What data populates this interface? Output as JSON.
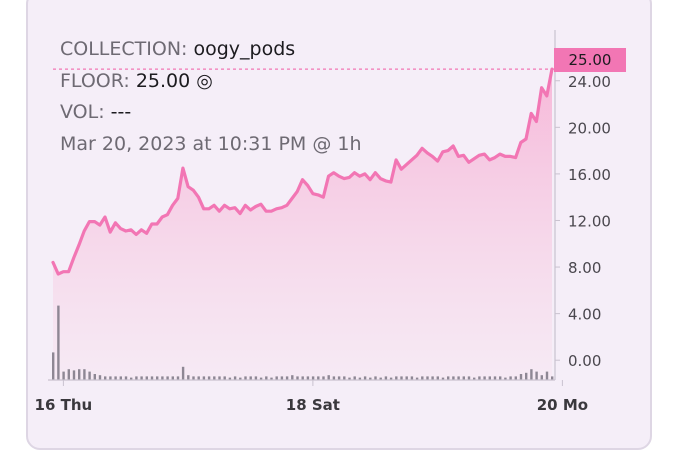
{
  "info": {
    "collection_label": "COLLECTION:",
    "collection_value": "oogy_pods",
    "floor_label": "FLOOR:",
    "floor_value": "25.00",
    "floor_icon": "circle-target-icon",
    "vol_label": "VOL:",
    "vol_value": "---",
    "timestamp": "Mar 20, 2023 at 10:31 PM @ 1h"
  },
  "current_price_label": "25.00",
  "colors": {
    "line": "#f276b4",
    "area_top": "#f7c3df",
    "volume": "#8e8794",
    "axis": "#c9c2cf"
  },
  "chart_data": {
    "type": "area",
    "title": "",
    "xlabel": "",
    "ylabel": "",
    "ylim": [
      -1.7,
      27.5
    ],
    "grid": false,
    "y_ticks": [
      "0.00",
      "4.00",
      "8.00",
      "12.00",
      "16.00",
      "20.00",
      "24.00"
    ],
    "y_tick_values": [
      0,
      4,
      8,
      12,
      16,
      20,
      24
    ],
    "x_ticks": [
      {
        "label": "16 Thu",
        "at": 2
      },
      {
        "label": "18 Sat",
        "at": 50
      },
      {
        "label": "20 Mo",
        "at": 98
      }
    ],
    "current_value": 25.0,
    "series": [
      {
        "values": [
          8.4,
          7.4,
          7.6,
          7.6,
          8.8,
          9.9,
          11.1,
          11.9,
          11.9,
          11.6,
          12.3,
          11.0,
          11.8,
          11.3,
          11.1,
          11.2,
          10.8,
          11.2,
          10.9,
          11.7,
          11.7,
          12.3,
          12.5,
          13.3,
          13.9,
          16.5,
          14.9,
          14.6,
          14.0,
          13.0,
          13.0,
          13.3,
          12.8,
          13.3,
          13.0,
          13.1,
          12.6,
          13.3,
          12.9,
          13.2,
          13.4,
          12.8,
          12.8,
          13.0,
          13.1,
          13.3,
          13.9,
          14.5,
          15.5,
          15.0,
          14.3,
          14.2,
          14.0,
          15.8,
          16.1,
          15.8,
          15.6,
          15.7,
          16.1,
          15.8,
          16.0,
          15.5,
          16.1,
          15.6,
          15.4,
          15.3,
          17.2,
          16.4,
          16.8,
          17.2,
          17.6,
          18.2,
          17.8,
          17.5,
          17.1,
          17.9,
          18.0,
          18.4,
          17.5,
          17.6,
          17.0,
          17.3,
          17.6,
          17.7,
          17.2,
          17.4,
          17.7,
          17.5,
          17.5,
          17.4,
          18.7,
          19.0,
          21.2,
          20.5,
          23.4,
          22.7,
          25.0
        ]
      },
      {
        "name": "volume",
        "values": [
          2.3,
          6.2,
          0.7,
          0.9,
          0.8,
          0.9,
          0.9,
          0.7,
          0.5,
          0.4,
          0.3,
          0.3,
          0.3,
          0.3,
          0.3,
          0.2,
          0.3,
          0.3,
          0.3,
          0.3,
          0.3,
          0.3,
          0.3,
          0.3,
          0.3,
          1.1,
          0.4,
          0.3,
          0.3,
          0.3,
          0.3,
          0.3,
          0.3,
          0.3,
          0.2,
          0.3,
          0.2,
          0.3,
          0.3,
          0.3,
          0.2,
          0.3,
          0.2,
          0.3,
          0.3,
          0.3,
          0.4,
          0.3,
          0.3,
          0.3,
          0.3,
          0.3,
          0.3,
          0.4,
          0.3,
          0.3,
          0.3,
          0.2,
          0.3,
          0.2,
          0.3,
          0.2,
          0.3,
          0.2,
          0.3,
          0.2,
          0.3,
          0.3,
          0.3,
          0.3,
          0.2,
          0.3,
          0.3,
          0.3,
          0.3,
          0.2,
          0.3,
          0.3,
          0.3,
          0.3,
          0.3,
          0.2,
          0.3,
          0.3,
          0.3,
          0.3,
          0.3,
          0.2,
          0.3,
          0.3,
          0.5,
          0.6,
          0.9,
          0.7,
          0.4,
          0.7,
          0.3
        ]
      }
    ]
  }
}
